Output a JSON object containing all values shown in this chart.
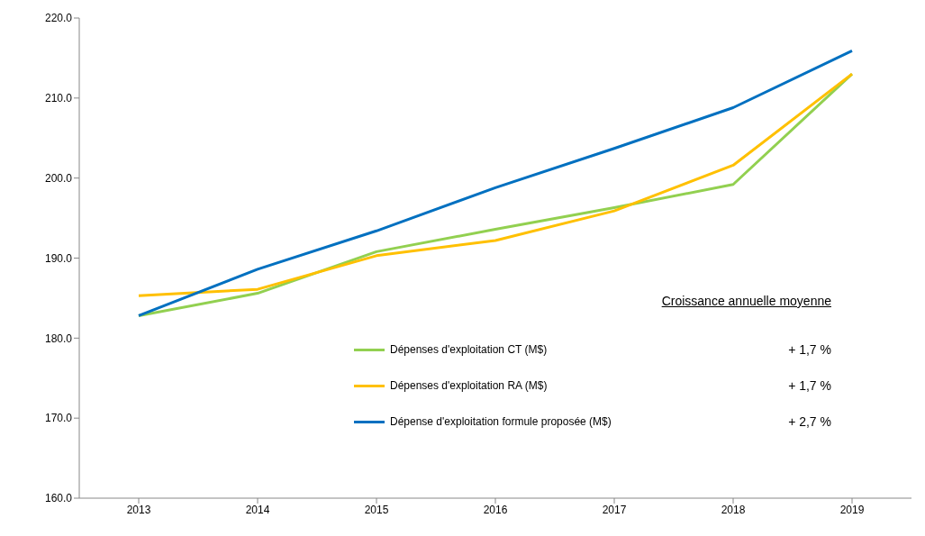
{
  "chart_data": {
    "type": "line",
    "categories": [
      "2013",
      "2014",
      "2015",
      "2016",
      "2017",
      "2018",
      "2019"
    ],
    "series": [
      {
        "name": "Dépenses d'exploitation CT (M$)",
        "color": "#92d050",
        "values": [
          182.8,
          185.6,
          190.8,
          193.6,
          196.3,
          199.2,
          213.0
        ]
      },
      {
        "name": "Dépenses d'exploitation RA (M$)",
        "color": "#ffc000",
        "values": [
          185.3,
          186.1,
          190.3,
          192.2,
          195.9,
          201.6,
          213.0
        ]
      },
      {
        "name": "Dépense d'exploitation formule proposée (M$)",
        "color": "#0070c0",
        "values": [
          182.8,
          188.6,
          193.4,
          198.8,
          203.7,
          208.8,
          215.9
        ]
      }
    ],
    "ylim": [
      160,
      220
    ],
    "yticks": [
      {
        "value": 160,
        "label": "160.0"
      },
      {
        "value": 170,
        "label": "170.0"
      },
      {
        "value": 180,
        "label": "180.0"
      },
      {
        "value": 190,
        "label": "190.0"
      },
      {
        "value": 200,
        "label": "200.0"
      },
      {
        "value": 210,
        "label": "210.0"
      },
      {
        "value": 220,
        "label": "220.0"
      }
    ],
    "legend": "bottom right",
    "marker": "none",
    "line_style": "solid",
    "annotations": [
      "Croissance annuelle moyenne",
      "+ 1,7 %",
      "+ 1,7 %",
      "+ 2,7 %"
    ]
  }
}
